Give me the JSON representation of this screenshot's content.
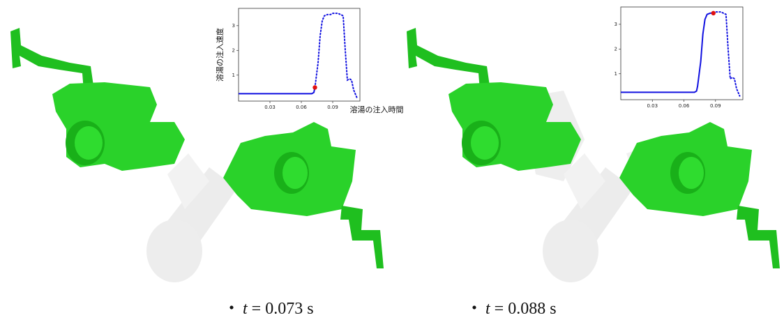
{
  "chart_data": [
    {
      "type": "line",
      "ylabel": "溶湯の注入速度",
      "xlabel": "溶湯の注入時間",
      "x": [
        0,
        0.01,
        0.02,
        0.03,
        0.04,
        0.05,
        0.06,
        0.07,
        0.072,
        0.073,
        0.076,
        0.078,
        0.08,
        0.082,
        0.085,
        0.088,
        0.09,
        0.095,
        0.1,
        0.102,
        0.104,
        0.106,
        0.108,
        0.11,
        0.113
      ],
      "series": [
        {
          "color": "#1010e0",
          "style": "solid",
          "values": [
            0.25,
            0.25,
            0.25,
            0.25,
            0.25,
            0.25,
            0.25,
            0.25,
            0.3,
            0.5,
            null,
            null,
            null,
            null,
            null,
            null,
            null,
            null,
            null,
            null,
            null,
            null,
            null,
            null,
            null
          ]
        },
        {
          "color": "#1010e0",
          "style": "dotted",
          "values": [
            null,
            null,
            null,
            null,
            null,
            null,
            null,
            null,
            null,
            0.5,
            1.5,
            2.6,
            3.2,
            3.4,
            3.45,
            3.45,
            3.5,
            3.5,
            3.4,
            2.0,
            0.8,
            0.85,
            0.8,
            0.4,
            0.1
          ]
        }
      ],
      "marker": {
        "x": 0.073,
        "y": 0.5,
        "color": "#e01010"
      },
      "xlim": [
        0,
        0.116
      ],
      "ylim": [
        -0.05,
        3.7
      ],
      "xticks": [
        0.03,
        0.06,
        0.09
      ],
      "yticks": [
        1,
        2,
        3
      ]
    },
    {
      "type": "line",
      "x": [
        0,
        0.01,
        0.02,
        0.03,
        0.04,
        0.05,
        0.06,
        0.07,
        0.072,
        0.073,
        0.076,
        0.078,
        0.08,
        0.082,
        0.085,
        0.088,
        0.09,
        0.095,
        0.1,
        0.102,
        0.104,
        0.106,
        0.108,
        0.11,
        0.113
      ],
      "series": [
        {
          "color": "#1010e0",
          "style": "solid",
          "values": [
            0.25,
            0.25,
            0.25,
            0.25,
            0.25,
            0.25,
            0.25,
            0.25,
            0.3,
            0.5,
            1.5,
            2.6,
            3.2,
            3.4,
            3.45,
            3.45,
            null,
            null,
            null,
            null,
            null,
            null,
            null,
            null,
            null
          ]
        },
        {
          "color": "#1010e0",
          "style": "dotted",
          "values": [
            null,
            null,
            null,
            null,
            null,
            null,
            null,
            null,
            null,
            null,
            null,
            null,
            null,
            null,
            null,
            3.45,
            3.5,
            3.5,
            3.4,
            2.0,
            0.8,
            0.85,
            0.8,
            0.4,
            0.1
          ]
        }
      ],
      "marker": {
        "x": 0.088,
        "y": 3.45,
        "color": "#e01010"
      },
      "xlim": [
        0,
        0.116
      ],
      "ylim": [
        -0.05,
        3.7
      ],
      "xticks": [
        0.03,
        0.06,
        0.09
      ],
      "yticks": [
        1,
        2,
        3
      ]
    }
  ],
  "captions": [
    {
      "bullet": "・",
      "var": "t",
      "text": "= 0.073 s"
    },
    {
      "bullet": "・",
      "var": "t",
      "text": "= 0.088 s"
    }
  ]
}
